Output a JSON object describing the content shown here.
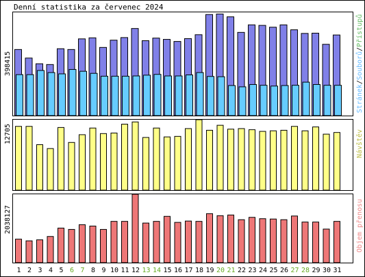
{
  "title": "Denní statistika za červenec 2024",
  "colors": {
    "background": "#ffffff",
    "frame": "#000000",
    "pages": "#8080e8",
    "files": "#66ccff",
    "hits": "#8080e8",
    "visits": "#ffff88",
    "bandwidth": "#ee7777",
    "legend_pages": "#66bbff",
    "legend_files": "#66bbff",
    "legend_hits": "#66bb66",
    "legend_visits": "#bbbb44",
    "legend_bandwidth": "#ee8888",
    "weekend_label": "#66aa22",
    "weekday_label": "#000000"
  },
  "labels": {
    "panel1_max": "398415",
    "panel2_max": "12705",
    "panel3_max": "2038127",
    "legend_pages": "Stránek",
    "legend_files": "Souborů",
    "legend_hits": "Přístupů",
    "legend_visits": "Návštěv",
    "legend_bandwidth": "Objem přenosu",
    "separator": "/"
  },
  "chart_data": [
    {
      "type": "bar",
      "panel": "hits-files-pages",
      "categories": [
        "1",
        "2",
        "3",
        "4",
        "5",
        "6",
        "7",
        "8",
        "9",
        "10",
        "11",
        "12",
        "13",
        "14",
        "15",
        "16",
        "17",
        "18",
        "19",
        "20",
        "21",
        "22",
        "23",
        "24",
        "25",
        "26",
        "27",
        "28",
        "29",
        "30",
        "31"
      ],
      "weekend_days": [
        6,
        7,
        13,
        14,
        20,
        21,
        27,
        28
      ],
      "ylim": [
        0,
        398415
      ],
      "series": [
        {
          "name": "Přístupů",
          "values": [
            255000,
            222000,
            200000,
            197000,
            258000,
            255000,
            296000,
            300000,
            263000,
            291000,
            301000,
            336000,
            289000,
            299000,
            294000,
            286000,
            297000,
            312000,
            390000,
            392000,
            381000,
            321000,
            350000,
            348000,
            341000,
            350000,
            331000,
            317000,
            318000,
            275000,
            311000
          ]
        },
        {
          "name": "Souborů",
          "values": [
            158000,
            158000,
            174000,
            166000,
            161000,
            178000,
            171000,
            163000,
            152000,
            152000,
            152000,
            153000,
            156000,
            159000,
            153000,
            153000,
            157000,
            166000,
            151000,
            150000,
            116000,
            111000,
            120000,
            117000,
            114000,
            116000,
            117000,
            129000,
            120000,
            117000,
            117000
          ]
        },
        {
          "name": "Stránek",
          "values": [
            158000,
            158000,
            174000,
            166000,
            161000,
            178000,
            171000,
            163000,
            152000,
            152000,
            152000,
            153000,
            156000,
            159000,
            153000,
            153000,
            157000,
            166000,
            151000,
            150000,
            116000,
            111000,
            120000,
            117000,
            114000,
            116000,
            117000,
            129000,
            120000,
            117000,
            117000
          ]
        }
      ]
    },
    {
      "type": "bar",
      "panel": "visits",
      "categories": [
        "1",
        "2",
        "3",
        "4",
        "5",
        "6",
        "7",
        "8",
        "9",
        "10",
        "11",
        "12",
        "13",
        "14",
        "15",
        "16",
        "17",
        "18",
        "19",
        "20",
        "21",
        "22",
        "23",
        "24",
        "25",
        "26",
        "27",
        "28",
        "29",
        "30",
        "31"
      ],
      "ylim": [
        0,
        12705
      ],
      "series": [
        {
          "name": "Návštěv",
          "values": [
            11500,
            11500,
            8200,
            7500,
            11300,
            8600,
            10000,
            11200,
            10200,
            10300,
            11900,
            12300,
            9500,
            11200,
            9600,
            9700,
            11100,
            12700,
            10800,
            11700,
            11000,
            11100,
            10900,
            10600,
            10700,
            10800,
            11500,
            10700,
            11400,
            10100,
            10400
          ]
        }
      ]
    },
    {
      "type": "bar",
      "panel": "bandwidth",
      "categories": [
        "1",
        "2",
        "3",
        "4",
        "5",
        "6",
        "7",
        "8",
        "9",
        "10",
        "11",
        "12",
        "13",
        "14",
        "15",
        "16",
        "17",
        "18",
        "19",
        "20",
        "21",
        "22",
        "23",
        "24",
        "25",
        "26",
        "27",
        "28",
        "29",
        "30",
        "31"
      ],
      "ylim": [
        0,
        2038127
      ],
      "series": [
        {
          "name": "Objem přenosu",
          "values": [
            700000,
            650000,
            680000,
            780000,
            1030000,
            990000,
            1130000,
            1090000,
            990000,
            1230000,
            1230000,
            2038000,
            1180000,
            1230000,
            1380000,
            1200000,
            1240000,
            1230000,
            1460000,
            1400000,
            1420000,
            1280000,
            1350000,
            1310000,
            1300000,
            1280000,
            1390000,
            1210000,
            1210000,
            1000000,
            1230000
          ]
        }
      ]
    }
  ]
}
